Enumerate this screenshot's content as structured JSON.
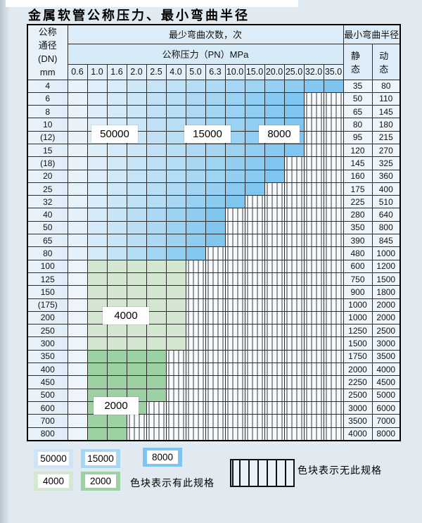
{
  "title": "金属软管公称压力、最小弯曲半径",
  "table": {
    "header": {
      "dn_lines": [
        "公称",
        "通径",
        "(DN)",
        "mm"
      ],
      "bend_cycles": "最少弯曲次数，次",
      "bend_radius": "最小弯曲半径",
      "pressure": "公称压力（PN）MPa",
      "static_label": "静 态",
      "dynamic_label": "动 态",
      "pressures": [
        "0.6",
        "1.0",
        "1.6",
        "2.0",
        "2.5",
        "4.0",
        "5.0",
        "6.3",
        "10.0",
        "15.0",
        "20.0",
        "25.0",
        "32.0",
        "35.0"
      ]
    },
    "rows": [
      {
        "dn": "4",
        "static": "35",
        "dynamic": "80",
        "colored_until": 13,
        "zone": "blue"
      },
      {
        "dn": "6",
        "static": "50",
        "dynamic": "110",
        "colored_until": 11,
        "zone": "blue"
      },
      {
        "dn": "8",
        "static": "65",
        "dynamic": "145",
        "colored_until": 11,
        "zone": "blue"
      },
      {
        "dn": "10",
        "static": "80",
        "dynamic": "180",
        "colored_until": 11,
        "zone": "blue"
      },
      {
        "dn": "(12)",
        "static": "95",
        "dynamic": "215",
        "colored_until": 11,
        "zone": "blue"
      },
      {
        "dn": "15",
        "static": "120",
        "dynamic": "270",
        "colored_until": 11,
        "zone": "blue"
      },
      {
        "dn": "(18)",
        "static": "145",
        "dynamic": "325",
        "colored_until": 10,
        "zone": "blue"
      },
      {
        "dn": "20",
        "static": "160",
        "dynamic": "360",
        "colored_until": 10,
        "zone": "blue"
      },
      {
        "dn": "25",
        "static": "175",
        "dynamic": "400",
        "colored_until": 9,
        "zone": "blue"
      },
      {
        "dn": "32",
        "static": "225",
        "dynamic": "510",
        "colored_until": 8,
        "zone": "blue"
      },
      {
        "dn": "40",
        "static": "280",
        "dynamic": "640",
        "colored_until": 7,
        "zone": "blue"
      },
      {
        "dn": "50",
        "static": "350",
        "dynamic": "800",
        "colored_until": 7,
        "zone": "blue"
      },
      {
        "dn": "65",
        "static": "390",
        "dynamic": "845",
        "colored_until": 7,
        "zone": "blue"
      },
      {
        "dn": "80",
        "static": "480",
        "dynamic": "1000",
        "colored_until": 6,
        "zone": "blue"
      },
      {
        "dn": "100",
        "static": "600",
        "dynamic": "1200",
        "colored_until": 5,
        "zone": "green_light"
      },
      {
        "dn": "125",
        "static": "750",
        "dynamic": "1500",
        "colored_until": 5,
        "zone": "green_light"
      },
      {
        "dn": "150",
        "static": "900",
        "dynamic": "1800",
        "colored_until": 5,
        "zone": "green_light"
      },
      {
        "dn": "(175)",
        "static": "1000",
        "dynamic": "2000",
        "colored_until": 5,
        "zone": "green_light"
      },
      {
        "dn": "200",
        "static": "1000",
        "dynamic": "2000",
        "colored_until": 5,
        "zone": "green_light"
      },
      {
        "dn": "250",
        "static": "1250",
        "dynamic": "2500",
        "colored_until": 5,
        "zone": "green_light"
      },
      {
        "dn": "300",
        "static": "1500",
        "dynamic": "3000",
        "colored_until": 5,
        "zone": "green_light"
      },
      {
        "dn": "350",
        "static": "1750",
        "dynamic": "3500",
        "colored_until": 4,
        "zone": "green_dark"
      },
      {
        "dn": "400",
        "static": "2000",
        "dynamic": "4000",
        "colored_until": 4,
        "zone": "green_dark"
      },
      {
        "dn": "450",
        "static": "2250",
        "dynamic": "4500",
        "colored_until": 4,
        "zone": "green_dark"
      },
      {
        "dn": "500",
        "static": "2500",
        "dynamic": "5000",
        "colored_until": 4,
        "zone": "green_dark"
      },
      {
        "dn": "600",
        "static": "3000",
        "dynamic": "6000",
        "colored_until": 3,
        "zone": "green_dark"
      },
      {
        "dn": "700",
        "static": "3500",
        "dynamic": "7000",
        "colored_until": 2,
        "zone": "green_dark"
      },
      {
        "dn": "800",
        "static": "4000",
        "dynamic": "8000",
        "colored_until": 2,
        "zone": "green_dark"
      }
    ]
  },
  "region_labels": {
    "r50000": "50000",
    "r15000": "15000",
    "r8000": "8000",
    "r4000": "4000",
    "r2000": "2000"
  },
  "legend": {
    "available_label": "色块表示有此规格",
    "unavailable_label": "色块表示无此规格",
    "swatches": [
      {
        "value": "50000",
        "color": "#cfe5f6"
      },
      {
        "value": "15000",
        "color": "#a9d6f2"
      },
      {
        "value": "8000",
        "color": "#7dc6ef"
      },
      {
        "value": "4000",
        "color": "#d4e8d1"
      },
      {
        "value": "2000",
        "color": "#9bd1a3"
      }
    ]
  },
  "colors": {
    "blue_pale": "#ecf4fb",
    "blue_dark": "#79c3ee",
    "green_light": "#d3e7d0",
    "green_dark": "#9bd1a3",
    "first_col_pale": "#edf4fb"
  },
  "chart_data": {
    "type": "table",
    "title": "金属软管公称压力、最小弯曲半径",
    "pressure_columns_MPa": [
      0.6,
      1.0,
      1.6,
      2.0,
      2.5,
      4.0,
      5.0,
      6.3,
      10.0,
      15.0,
      20.0,
      25.0,
      32.0,
      35.0
    ],
    "bend_cycle_zones": {
      "blue": [
        50000,
        15000,
        8000
      ],
      "green": [
        4000,
        2000
      ]
    },
    "rows_dn": [
      "4",
      "6",
      "8",
      "10",
      "(12)",
      "15",
      "(18)",
      "20",
      "25",
      "32",
      "40",
      "50",
      "65",
      "80",
      "100",
      "125",
      "150",
      "(175)",
      "200",
      "250",
      "300",
      "350",
      "400",
      "450",
      "500",
      "600",
      "700",
      "800"
    ],
    "static_radius": [
      35,
      50,
      65,
      80,
      95,
      120,
      145,
      160,
      175,
      225,
      280,
      350,
      390,
      480,
      600,
      750,
      900,
      1000,
      1000,
      1250,
      1500,
      1750,
      2000,
      2250,
      2500,
      3000,
      3500,
      4000
    ],
    "dynamic_radius": [
      80,
      110,
      145,
      180,
      215,
      270,
      325,
      360,
      400,
      510,
      640,
      800,
      845,
      1000,
      1200,
      1500,
      1800,
      2000,
      2000,
      2500,
      3000,
      3500,
      4000,
      4500,
      5000,
      6000,
      7000,
      8000
    ],
    "max_available_pressure_MPa": [
      35.0,
      25.0,
      25.0,
      25.0,
      25.0,
      25.0,
      20.0,
      20.0,
      15.0,
      10.0,
      6.3,
      6.3,
      6.3,
      5.0,
      4.0,
      4.0,
      4.0,
      4.0,
      4.0,
      4.0,
      4.0,
      2.5,
      2.5,
      2.5,
      2.5,
      2.0,
      1.6,
      1.6
    ]
  }
}
